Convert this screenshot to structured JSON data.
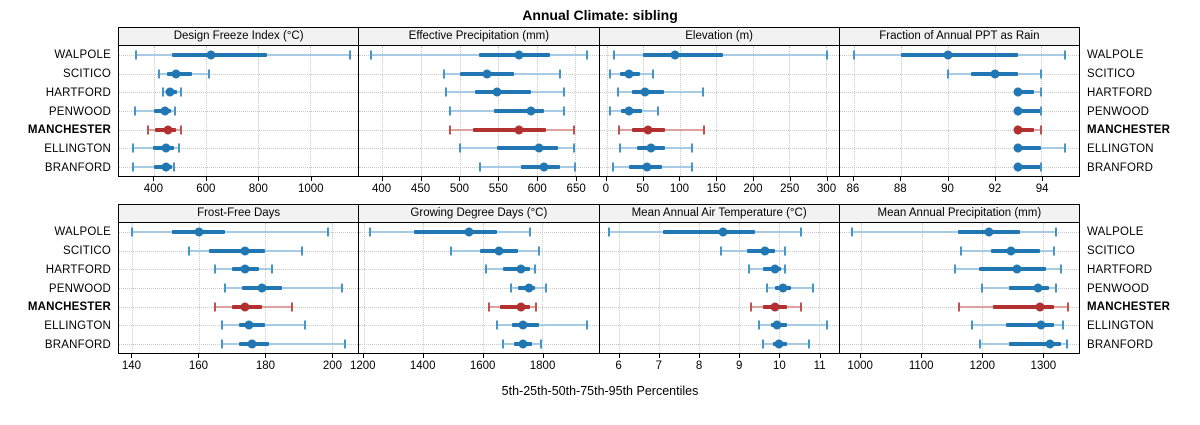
{
  "title": "Annual Climate: sibling",
  "caption": "5th-25th-50th-75th-95th Percentiles",
  "stations": [
    "WALPOLE",
    "SCITICO",
    "HARTFORD",
    "PENWOOD",
    "MANCHESTER",
    "ELLINGTON",
    "BRANFORD"
  ],
  "highlight_station": "MANCHESTER",
  "percentile_labels": [
    "5th",
    "25th",
    "50th",
    "75th",
    "95th"
  ],
  "colors": {
    "blue": "#2077b4",
    "blue_light": "#a6cbe3",
    "blue_cap": "#4695c8",
    "red": "#b23030",
    "red_light": "#dda2a0",
    "red_cap": "#c0524e",
    "strip_bg": "#f2f2f2",
    "grid": "#c9c9c9",
    "border": "#000000"
  },
  "layout": {
    "rows": [
      [
        0,
        1,
        2,
        3
      ],
      [
        4,
        5,
        6,
        7
      ]
    ],
    "legend": "none",
    "grid": "dotted"
  },
  "chart_data": [
    {
      "type": "dotplot",
      "title": "Design Freeze Index (°C)",
      "xlim": [
        265,
        1185
      ],
      "ticks": [
        400,
        600,
        800,
        1000
      ],
      "series": [
        {
          "name": "WALPOLE",
          "values": [
            330,
            470,
            620,
            835,
            1155
          ]
        },
        {
          "name": "SCITICO",
          "values": [
            420,
            450,
            485,
            545,
            610
          ]
        },
        {
          "name": "HARTFORD",
          "values": [
            435,
            450,
            462,
            487,
            503
          ]
        },
        {
          "name": "PENWOOD",
          "values": [
            325,
            400,
            440,
            465,
            480
          ]
        },
        {
          "name": "MANCHESTER",
          "values": [
            375,
            405,
            453,
            483,
            505
          ]
        },
        {
          "name": "ELLINGTON",
          "values": [
            320,
            395,
            445,
            475,
            495
          ]
        },
        {
          "name": "BRANFORD",
          "values": [
            320,
            400,
            445,
            468,
            478
          ]
        }
      ]
    },
    {
      "type": "dotplot",
      "title": "Effective Precipitation (mm)",
      "xlim": [
        370,
        680
      ],
      "ticks": [
        400,
        450,
        500,
        550,
        600,
        650
      ],
      "series": [
        {
          "name": "WALPOLE",
          "values": [
            385,
            525,
            577,
            617,
            665
          ]
        },
        {
          "name": "SCITICO",
          "values": [
            480,
            500,
            535,
            570,
            630
          ]
        },
        {
          "name": "HARTFORD",
          "values": [
            483,
            520,
            548,
            592,
            635
          ]
        },
        {
          "name": "PENWOOD",
          "values": [
            487,
            545,
            593,
            610,
            635
          ]
        },
        {
          "name": "MANCHESTER",
          "values": [
            487,
            517,
            577,
            612,
            648
          ]
        },
        {
          "name": "ELLINGTON",
          "values": [
            500,
            548,
            603,
            628,
            648
          ]
        },
        {
          "name": "BRANFORD",
          "values": [
            527,
            580,
            610,
            630,
            650
          ]
        }
      ]
    },
    {
      "type": "dotplot",
      "title": "Elevation (m)",
      "xlim": [
        -10,
        318
      ],
      "ticks": [
        0,
        50,
        100,
        150,
        200,
        250,
        300
      ],
      "series": [
        {
          "name": "WALPOLE",
          "values": [
            10,
            50,
            93,
            160,
            302
          ]
        },
        {
          "name": "SCITICO",
          "values": [
            5,
            18,
            30,
            45,
            63
          ]
        },
        {
          "name": "HARTFORD",
          "values": [
            15,
            35,
            53,
            78,
            132
          ]
        },
        {
          "name": "PENWOOD",
          "values": [
            5,
            20,
            30,
            48,
            70
          ]
        },
        {
          "name": "MANCHESTER",
          "values": [
            17,
            35,
            57,
            80,
            133
          ]
        },
        {
          "name": "ELLINGTON",
          "values": [
            18,
            42,
            60,
            80,
            117
          ]
        },
        {
          "name": "BRANFORD",
          "values": [
            8,
            30,
            55,
            75,
            117
          ]
        }
      ]
    },
    {
      "type": "dotplot",
      "title": "Fraction of Annual PPT as Rain",
      "xlim": [
        85.4,
        95.6
      ],
      "ticks": [
        86,
        88,
        90,
        92,
        94
      ],
      "series": [
        {
          "name": "WALPOLE",
          "values": [
            86,
            88,
            90,
            93,
            95
          ]
        },
        {
          "name": "SCITICO",
          "values": [
            90,
            91,
            92,
            93,
            94
          ]
        },
        {
          "name": "HARTFORD",
          "values": [
            93,
            93,
            93,
            93.7,
            94
          ]
        },
        {
          "name": "PENWOOD",
          "values": [
            93,
            93,
            93,
            94,
            94
          ]
        },
        {
          "name": "MANCHESTER",
          "values": [
            93,
            93,
            93,
            93.7,
            94
          ]
        },
        {
          "name": "ELLINGTON",
          "values": [
            93,
            93,
            93,
            94,
            95
          ]
        },
        {
          "name": "BRANFORD",
          "values": [
            93,
            93,
            93,
            94,
            94
          ]
        }
      ]
    },
    {
      "type": "dotplot",
      "title": "Frost-Free Days",
      "xlim": [
        136,
        208
      ],
      "ticks": [
        140,
        160,
        180,
        200
      ],
      "series": [
        {
          "name": "WALPOLE",
          "values": [
            140,
            152,
            160,
            168,
            199
          ]
        },
        {
          "name": "SCITICO",
          "values": [
            157,
            163,
            174,
            180,
            191
          ]
        },
        {
          "name": "HARTFORD",
          "values": [
            165,
            170,
            174,
            178,
            182
          ]
        },
        {
          "name": "PENWOOD",
          "values": [
            168,
            173,
            179,
            185,
            203
          ]
        },
        {
          "name": "MANCHESTER",
          "values": [
            165,
            170,
            174,
            179,
            188
          ]
        },
        {
          "name": "ELLINGTON",
          "values": [
            167,
            172,
            175,
            180,
            192
          ]
        },
        {
          "name": "BRANFORD",
          "values": [
            167,
            172,
            176,
            181,
            204
          ]
        }
      ]
    },
    {
      "type": "dotplot",
      "title": "Growing Degree Days (°C)",
      "xlim": [
        1185,
        1990
      ],
      "ticks": [
        1200,
        1400,
        1600,
        1800
      ],
      "series": [
        {
          "name": "WALPOLE",
          "values": [
            1220,
            1370,
            1555,
            1650,
            1760
          ]
        },
        {
          "name": "SCITICO",
          "values": [
            1495,
            1590,
            1655,
            1720,
            1790
          ]
        },
        {
          "name": "HARTFORD",
          "values": [
            1610,
            1670,
            1730,
            1760,
            1775
          ]
        },
        {
          "name": "PENWOOD",
          "values": [
            1695,
            1720,
            1755,
            1775,
            1815
          ]
        },
        {
          "name": "MANCHESTER",
          "values": [
            1620,
            1660,
            1730,
            1760,
            1780
          ]
        },
        {
          "name": "ELLINGTON",
          "values": [
            1650,
            1700,
            1735,
            1790,
            1950
          ]
        },
        {
          "name": "BRANFORD",
          "values": [
            1670,
            1705,
            1735,
            1765,
            1795
          ]
        }
      ]
    },
    {
      "type": "dotplot",
      "title": "Mean Annual Air Temperature (°C)",
      "xlim": [
        5.5,
        11.5
      ],
      "ticks": [
        6,
        7,
        8,
        9,
        10,
        11
      ],
      "series": [
        {
          "name": "WALPOLE",
          "values": [
            5.75,
            7.1,
            8.6,
            9.4,
            10.55
          ]
        },
        {
          "name": "SCITICO",
          "values": [
            8.55,
            9.2,
            9.65,
            9.9,
            10.15
          ]
        },
        {
          "name": "HARTFORD",
          "values": [
            9.25,
            9.6,
            9.9,
            10.05,
            10.15
          ]
        },
        {
          "name": "PENWOOD",
          "values": [
            9.7,
            9.9,
            10.1,
            10.3,
            10.85
          ]
        },
        {
          "name": "MANCHESTER",
          "values": [
            9.3,
            9.6,
            9.9,
            10.2,
            10.55
          ]
        },
        {
          "name": "ELLINGTON",
          "values": [
            9.5,
            9.8,
            9.95,
            10.2,
            11.2
          ]
        },
        {
          "name": "BRANFORD",
          "values": [
            9.6,
            9.85,
            10.0,
            10.2,
            10.75
          ]
        }
      ]
    },
    {
      "type": "dotplot",
      "title": "Mean Annual Precipitation (mm)",
      "xlim": [
        965,
        1360
      ],
      "ticks": [
        1000,
        1100,
        1200,
        1300
      ],
      "series": [
        {
          "name": "WALPOLE",
          "values": [
            985,
            1160,
            1212,
            1262,
            1322
          ]
        },
        {
          "name": "SCITICO",
          "values": [
            1165,
            1215,
            1247,
            1295,
            1318
          ]
        },
        {
          "name": "HARTFORD",
          "values": [
            1155,
            1195,
            1258,
            1305,
            1330
          ]
        },
        {
          "name": "PENWOOD",
          "values": [
            1200,
            1245,
            1292,
            1310,
            1322
          ]
        },
        {
          "name": "MANCHESTER",
          "values": [
            1162,
            1218,
            1295,
            1318,
            1342
          ]
        },
        {
          "name": "ELLINGTON",
          "values": [
            1183,
            1240,
            1297,
            1318,
            1333
          ]
        },
        {
          "name": "BRANFORD",
          "values": [
            1197,
            1245,
            1312,
            1330,
            1340
          ]
        }
      ]
    }
  ]
}
